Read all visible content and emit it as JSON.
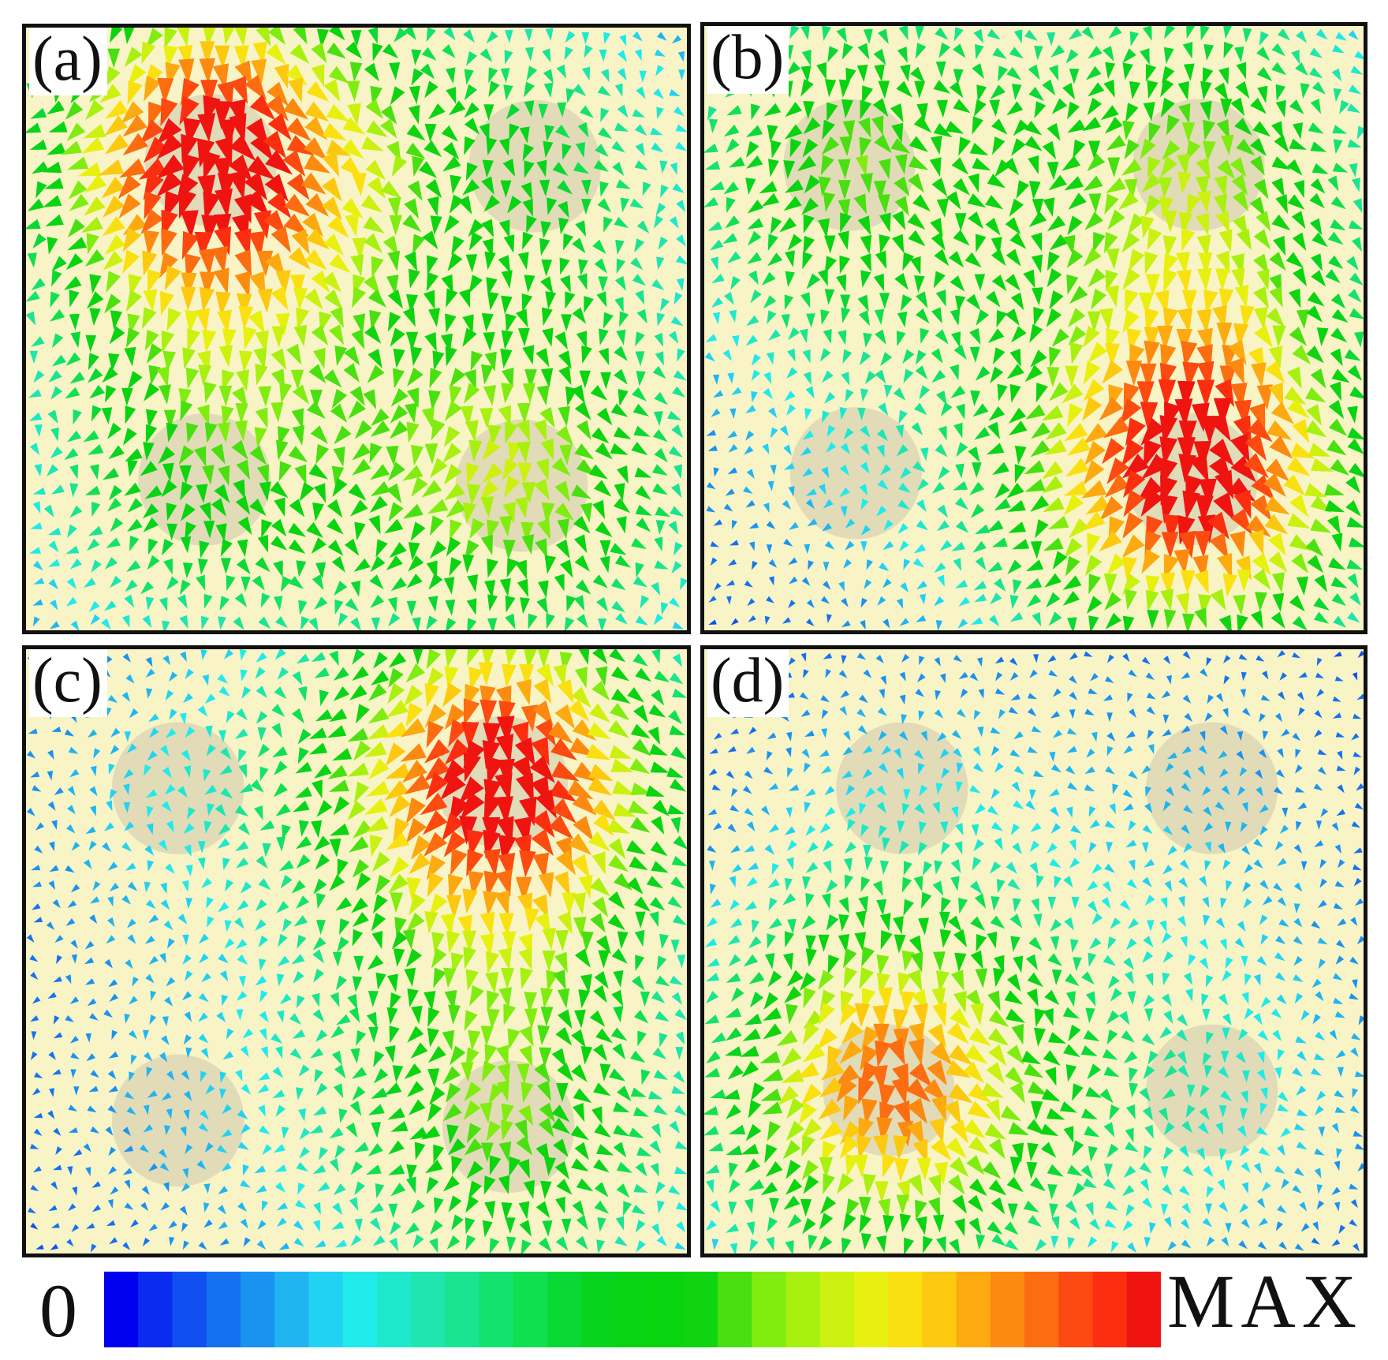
{
  "panels": [
    {
      "label": "(a)",
      "centers": [
        [
          0.28,
          0.22,
          1.0
        ],
        [
          0.77,
          0.23,
          0.35
        ],
        [
          0.27,
          0.75,
          0.45
        ],
        [
          0.75,
          0.76,
          0.6
        ]
      ]
    },
    {
      "label": "(b)",
      "centers": [
        [
          0.22,
          0.23,
          0.55
        ],
        [
          0.75,
          0.23,
          0.55
        ],
        [
          0.23,
          0.74,
          0.12
        ],
        [
          0.74,
          0.75,
          1.0
        ]
      ]
    },
    {
      "label": "(c)",
      "centers": [
        [
          0.23,
          0.23,
          0.15
        ],
        [
          0.72,
          0.22,
          1.0
        ],
        [
          0.23,
          0.78,
          0.1
        ],
        [
          0.73,
          0.79,
          0.55
        ]
      ]
    },
    {
      "label": "(d)",
      "centers": [
        [
          0.3,
          0.23,
          0.12
        ],
        [
          0.77,
          0.23,
          0.1
        ],
        [
          0.28,
          0.73,
          0.85
        ],
        [
          0.77,
          0.73,
          0.2
        ]
      ]
    }
  ],
  "colorbar": {
    "min_label": "0",
    "max_label": "MAX",
    "colors": [
      "#0000ee",
      "#0a2cf0",
      "#1050f0",
      "#1472f0",
      "#1a92f0",
      "#20b4f0",
      "#22d2f2",
      "#20eaea",
      "#1ee8cc",
      "#1ee6ae",
      "#1ae490",
      "#14e270",
      "#10e050",
      "#0ad834",
      "#08d41e",
      "#08d414",
      "#08d410",
      "#10d410",
      "#48e010",
      "#80ec10",
      "#a8f010",
      "#ccf010",
      "#e8f010",
      "#fae010",
      "#fcc810",
      "#fcaa10",
      "#fc8a10",
      "#fc6c10",
      "#fc4a10",
      "#fc2e10",
      "#f01410"
    ]
  },
  "colors": {
    "background": "#f8f4c6",
    "disk": "#e2dbb8",
    "border": "#111111"
  }
}
